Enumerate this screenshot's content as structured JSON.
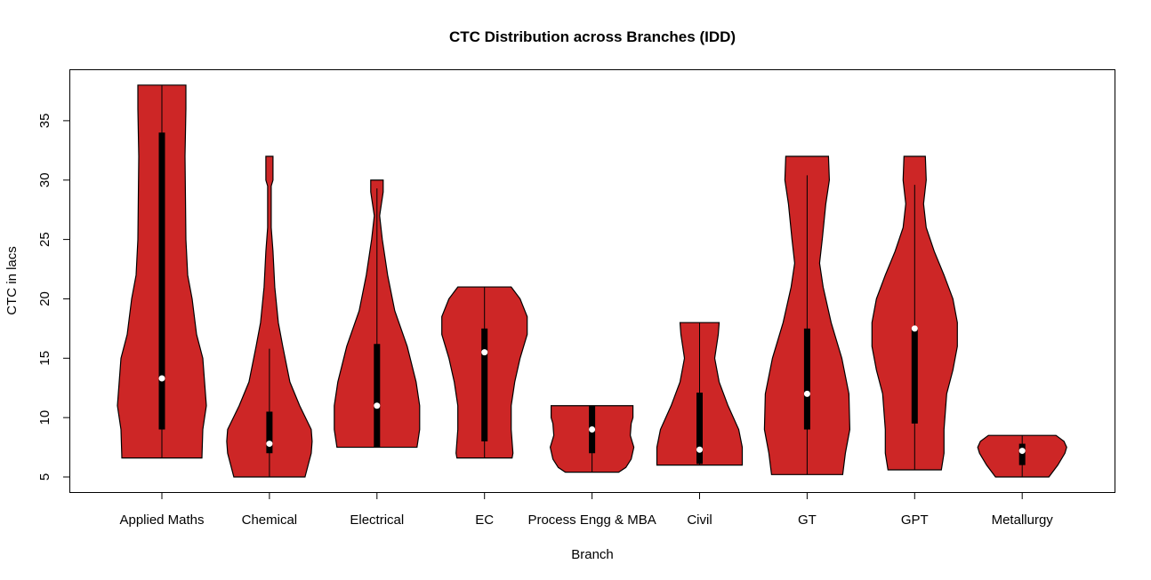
{
  "chart_data": {
    "type": "violin",
    "title": "CTC Distribution across Branches (IDD)",
    "xlabel": "Branch",
    "ylabel": "CTC in lacs",
    "ylim": [
      3.7,
      39.4
    ],
    "yticks": [
      5,
      10,
      15,
      20,
      25,
      30,
      35
    ],
    "grid": false,
    "fill_color": "#CD2626",
    "categories": [
      "Applied Maths",
      "Chemical",
      "Electrical",
      "EC",
      "Process Engg & MBA",
      "Civil",
      "GT",
      "GPT",
      "Metallurgy"
    ],
    "series": [
      {
        "category": "Applied Maths",
        "min": 6.6,
        "q1": 9,
        "median": 13.3,
        "q3": 34,
        "max": 38,
        "density": [
          [
            6.6,
            0.9
          ],
          [
            9,
            0.92
          ],
          [
            11,
            1.0
          ],
          [
            13,
            0.96
          ],
          [
            15,
            0.92
          ],
          [
            17,
            0.78
          ],
          [
            20,
            0.68
          ],
          [
            22,
            0.58
          ],
          [
            25,
            0.54
          ],
          [
            32,
            0.52
          ],
          [
            36,
            0.54
          ],
          [
            38,
            0.54
          ]
        ]
      },
      {
        "category": "Chemical",
        "min": 5,
        "q1": 7,
        "median": 7.8,
        "q3": 10.5,
        "max": 32,
        "whisker_high": 15.8,
        "density": [
          [
            5,
            0.8
          ],
          [
            7,
            0.94
          ],
          [
            8,
            0.96
          ],
          [
            9,
            0.94
          ],
          [
            11,
            0.68
          ],
          [
            13,
            0.46
          ],
          [
            16,
            0.3
          ],
          [
            18,
            0.2
          ],
          [
            21,
            0.12
          ],
          [
            24,
            0.08
          ],
          [
            26,
            0.04
          ],
          [
            29.5,
            0.04
          ],
          [
            30,
            0.08
          ],
          [
            32,
            0.08
          ]
        ]
      },
      {
        "category": "Electrical",
        "min": 7.5,
        "q1": 7.5,
        "median": 11,
        "q3": 16.2,
        "max": 30,
        "whisker_high": 29.3,
        "density": [
          [
            7.5,
            0.9
          ],
          [
            9,
            0.96
          ],
          [
            11,
            0.96
          ],
          [
            13,
            0.88
          ],
          [
            16,
            0.68
          ],
          [
            19,
            0.4
          ],
          [
            22,
            0.24
          ],
          [
            25,
            0.12
          ],
          [
            27,
            0.06
          ],
          [
            29,
            0.14
          ],
          [
            30,
            0.14
          ]
        ]
      },
      {
        "category": "EC",
        "min": 6.6,
        "q1": 8,
        "median": 15.5,
        "q3": 17.5,
        "max": 21,
        "density": [
          [
            6.6,
            0.62
          ],
          [
            7,
            0.64
          ],
          [
            9,
            0.6
          ],
          [
            11,
            0.6
          ],
          [
            13,
            0.68
          ],
          [
            15,
            0.8
          ],
          [
            17,
            0.96
          ],
          [
            18.5,
            0.96
          ],
          [
            20,
            0.8
          ],
          [
            21,
            0.6
          ]
        ]
      },
      {
        "category": "Process Engg & MBA",
        "min": 5.4,
        "q1": 7,
        "median": 9,
        "q3": 11,
        "max": 11,
        "density": [
          [
            5.4,
            0.6
          ],
          [
            5.8,
            0.76
          ],
          [
            6.5,
            0.88
          ],
          [
            7.5,
            0.94
          ],
          [
            8.5,
            0.86
          ],
          [
            9.5,
            0.88
          ],
          [
            10,
            0.92
          ],
          [
            11,
            0.92
          ]
        ]
      },
      {
        "category": "Civil",
        "min": 6,
        "q1": 6.1,
        "median": 7.3,
        "q3": 12.1,
        "max": 18,
        "density": [
          [
            6,
            0.96
          ],
          [
            7.5,
            0.96
          ],
          [
            9,
            0.88
          ],
          [
            11,
            0.64
          ],
          [
            13,
            0.44
          ],
          [
            15,
            0.34
          ],
          [
            17,
            0.42
          ],
          [
            18,
            0.44
          ]
        ]
      },
      {
        "category": "GT",
        "min": 5.2,
        "q1": 9,
        "median": 12,
        "q3": 17.5,
        "max": 32,
        "whisker_high": 30.4,
        "density": [
          [
            5.2,
            0.8
          ],
          [
            7,
            0.86
          ],
          [
            9,
            0.96
          ],
          [
            12,
            0.94
          ],
          [
            15,
            0.78
          ],
          [
            18,
            0.54
          ],
          [
            21,
            0.36
          ],
          [
            23,
            0.28
          ],
          [
            25,
            0.34
          ],
          [
            28,
            0.42
          ],
          [
            30,
            0.5
          ],
          [
            32,
            0.48
          ]
        ]
      },
      {
        "category": "GPT",
        "min": 5.6,
        "q1": 9.5,
        "median": 17.5,
        "q3": 17.5,
        "max": 32,
        "whisker_high": 29.6,
        "density": [
          [
            5.6,
            0.6
          ],
          [
            7,
            0.66
          ],
          [
            9,
            0.66
          ],
          [
            12,
            0.72
          ],
          [
            14,
            0.86
          ],
          [
            16,
            0.96
          ],
          [
            18,
            0.96
          ],
          [
            20,
            0.86
          ],
          [
            22,
            0.66
          ],
          [
            24,
            0.44
          ],
          [
            26,
            0.26
          ],
          [
            28,
            0.2
          ],
          [
            30,
            0.26
          ],
          [
            32,
            0.24
          ]
        ]
      },
      {
        "category": "Metallurgy",
        "min": 5,
        "q1": 6,
        "median": 7.2,
        "q3": 7.8,
        "max": 8.5,
        "density": [
          [
            5,
            0.6
          ],
          [
            6,
            0.8
          ],
          [
            7,
            0.96
          ],
          [
            7.5,
            1.0
          ],
          [
            8,
            0.94
          ],
          [
            8.5,
            0.76
          ]
        ]
      }
    ]
  }
}
